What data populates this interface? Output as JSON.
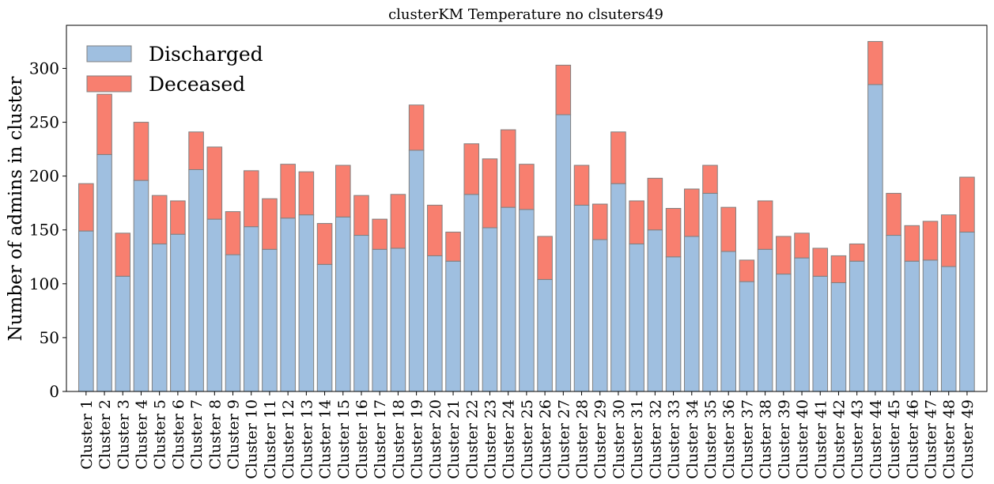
{
  "chart_data": {
    "type": "bar",
    "stacked": true,
    "title": "clusterKM Temperature no clsuters49",
    "xlabel": "",
    "ylabel": "Number of admins in cluster",
    "ylim": [
      0,
      340
    ],
    "yticks": [
      0,
      50,
      100,
      150,
      200,
      250,
      300
    ],
    "grid": false,
    "legend_position": "top-left",
    "categories": [
      "Cluster 1",
      "Cluster 2",
      "Cluster 3",
      "Cluster 4",
      "Cluster 5",
      "Cluster 6",
      "Cluster 7",
      "Cluster 8",
      "Cluster 9",
      "Cluster 10",
      "Cluster 11",
      "Cluster 12",
      "Cluster 13",
      "Cluster 14",
      "Cluster 15",
      "Cluster 16",
      "Cluster 17",
      "Cluster 18",
      "Cluster 19",
      "Cluster 20",
      "Cluster 21",
      "Cluster 22",
      "Cluster 23",
      "Cluster 24",
      "Cluster 25",
      "Cluster 26",
      "Cluster 27",
      "Cluster 28",
      "Cluster 29",
      "Cluster 30",
      "Cluster 31",
      "Cluster 32",
      "Cluster 33",
      "Cluster 34",
      "Cluster 35",
      "Cluster 36",
      "Cluster 37",
      "Cluster 38",
      "Cluster 39",
      "Cluster 40",
      "Cluster 41",
      "Cluster 42",
      "Cluster 43",
      "Cluster 44",
      "Cluster 45",
      "Cluster 46",
      "Cluster 47",
      "Cluster 48",
      "Cluster 49"
    ],
    "series": [
      {
        "name": "Discharged",
        "color": "#9fbfe0",
        "values": [
          149,
          220,
          107,
          196,
          137,
          146,
          206,
          160,
          127,
          153,
          132,
          161,
          164,
          118,
          162,
          145,
          132,
          133,
          224,
          126,
          121,
          183,
          152,
          171,
          169,
          104,
          257,
          173,
          141,
          193,
          137,
          150,
          125,
          144,
          184,
          130,
          102,
          132,
          109,
          124,
          107,
          101,
          121,
          285,
          145,
          121,
          122,
          116,
          148
        ]
      },
      {
        "name": "Deceased",
        "color": "#f87f6f",
        "values": [
          44,
          56,
          40,
          54,
          45,
          31,
          35,
          67,
          40,
          52,
          47,
          50,
          40,
          38,
          48,
          37,
          28,
          50,
          42,
          47,
          27,
          47,
          64,
          72,
          42,
          40,
          46,
          37,
          33,
          48,
          40,
          48,
          45,
          44,
          26,
          41,
          20,
          45,
          35,
          23,
          26,
          25,
          16,
          40,
          39,
          33,
          36,
          48,
          51
        ]
      }
    ]
  }
}
